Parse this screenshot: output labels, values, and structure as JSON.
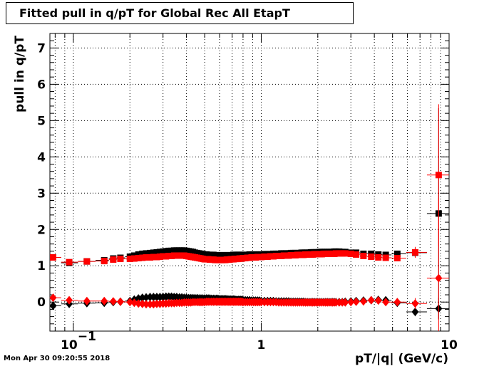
{
  "title": "Fitted pull in q/pT for Global Rec All EtapT",
  "timestamp": "Mon Apr 30 09:20:55 2018",
  "chart_data": {
    "type": "scatter",
    "title": "Fitted pull in q/pT for Global Rec All EtapT",
    "xlabel": "pT/|q| (GeV/c)",
    "ylabel": "pull in q/pT",
    "xscale": "log",
    "xlim": [
      0.075,
      10
    ],
    "ylim": [
      -0.8,
      7.4
    ],
    "grid": true,
    "x_tick_labels": [
      {
        "value": 0.1,
        "label": "10",
        "exponent": "−1"
      },
      {
        "value": 1,
        "label": "1"
      },
      {
        "value": 10,
        "label": "10"
      }
    ],
    "y_tick_labels": [
      0,
      1,
      2,
      3,
      4,
      5,
      6,
      7
    ],
    "x": [
      0.078,
      0.095,
      0.118,
      0.146,
      0.163,
      0.178,
      0.2,
      0.211,
      0.222,
      0.233,
      0.244,
      0.256,
      0.267,
      0.278,
      0.289,
      0.3,
      0.311,
      0.322,
      0.333,
      0.344,
      0.355,
      0.367,
      0.378,
      0.389,
      0.4,
      0.411,
      0.422,
      0.433,
      0.444,
      0.456,
      0.467,
      0.478,
      0.489,
      0.5,
      0.511,
      0.522,
      0.533,
      0.544,
      0.556,
      0.567,
      0.578,
      0.589,
      0.6,
      0.611,
      0.622,
      0.633,
      0.644,
      0.656,
      0.667,
      0.678,
      0.689,
      0.7,
      0.711,
      0.722,
      0.733,
      0.744,
      0.756,
      0.767,
      0.778,
      0.789,
      0.8,
      0.822,
      0.844,
      0.867,
      0.889,
      0.911,
      0.933,
      0.956,
      0.978,
      1.0,
      1.04,
      1.08,
      1.12,
      1.16,
      1.2,
      1.24,
      1.28,
      1.32,
      1.36,
      1.4,
      1.44,
      1.48,
      1.52,
      1.56,
      1.6,
      1.64,
      1.68,
      1.72,
      1.76,
      1.8,
      1.84,
      1.88,
      1.92,
      1.96,
      2.0,
      2.05,
      2.1,
      2.15,
      2.2,
      2.25,
      2.3,
      2.35,
      2.4,
      2.45,
      2.5,
      2.6,
      2.7,
      2.8,
      3.0,
      3.2,
      3.5,
      3.85,
      4.2,
      4.6,
      5.3,
      6.6,
      8.8
    ],
    "series": [
      {
        "color": "#000000",
        "marker": "square",
        "values": [
          1.23,
          1.08,
          1.12,
          1.15,
          1.2,
          1.22,
          1.25,
          1.28,
          1.31,
          1.33,
          1.34,
          1.35,
          1.36,
          1.37,
          1.38,
          1.39,
          1.4,
          1.41,
          1.41,
          1.42,
          1.42,
          1.42,
          1.42,
          1.42,
          1.41,
          1.4,
          1.39,
          1.38,
          1.36,
          1.35,
          1.34,
          1.33,
          1.32,
          1.31,
          1.31,
          1.3,
          1.3,
          1.3,
          1.3,
          1.29,
          1.29,
          1.29,
          1.29,
          1.29,
          1.29,
          1.29,
          1.29,
          1.29,
          1.29,
          1.29,
          1.29,
          1.29,
          1.3,
          1.3,
          1.3,
          1.3,
          1.3,
          1.3,
          1.3,
          1.3,
          1.3,
          1.3,
          1.3,
          1.31,
          1.31,
          1.31,
          1.31,
          1.31,
          1.31,
          1.31,
          1.32,
          1.32,
          1.32,
          1.33,
          1.33,
          1.33,
          1.34,
          1.34,
          1.34,
          1.34,
          1.35,
          1.35,
          1.35,
          1.35,
          1.35,
          1.36,
          1.36,
          1.36,
          1.36,
          1.36,
          1.37,
          1.37,
          1.37,
          1.37,
          1.37,
          1.38,
          1.38,
          1.38,
          1.38,
          1.38,
          1.38,
          1.38,
          1.38,
          1.39,
          1.39,
          1.39,
          1.38,
          1.38,
          1.36,
          1.36,
          1.33,
          1.33,
          1.31,
          1.3,
          1.33,
          1.36,
          2.44
        ],
        "errors": [
          0.05,
          0.04,
          0.04,
          0.04,
          0.03,
          0.03,
          0.03,
          0.03,
          0.03,
          0.03,
          0.03,
          0.03,
          0.03,
          0.03,
          0.03,
          0.03,
          0.03,
          0.03,
          0.03,
          0.03,
          0.03,
          0.03,
          0.03,
          0.03,
          0.03,
          0.03,
          0.03,
          0.03,
          0.03,
          0.03,
          0.03,
          0.03,
          0.03,
          0.03,
          0.03,
          0.03,
          0.03,
          0.03,
          0.03,
          0.03,
          0.03,
          0.03,
          0.03,
          0.03,
          0.03,
          0.03,
          0.03,
          0.03,
          0.03,
          0.03,
          0.03,
          0.03,
          0.03,
          0.03,
          0.03,
          0.03,
          0.03,
          0.03,
          0.03,
          0.03,
          0.03,
          0.03,
          0.03,
          0.03,
          0.03,
          0.03,
          0.03,
          0.03,
          0.03,
          0.03,
          0.03,
          0.03,
          0.03,
          0.03,
          0.03,
          0.03,
          0.03,
          0.03,
          0.03,
          0.03,
          0.03,
          0.03,
          0.03,
          0.03,
          0.03,
          0.03,
          0.03,
          0.03,
          0.03,
          0.03,
          0.03,
          0.03,
          0.03,
          0.03,
          0.03,
          0.03,
          0.03,
          0.03,
          0.03,
          0.03,
          0.03,
          0.03,
          0.03,
          0.03,
          0.03,
          0.03,
          0.03,
          0.03,
          0.04,
          0.04,
          0.04,
          0.05,
          0.05,
          0.06,
          0.07,
          0.12,
          2.9
        ]
      },
      {
        "color": "#ff0000",
        "marker": "square",
        "values": [
          1.23,
          1.1,
          1.12,
          1.13,
          1.17,
          1.19,
          1.19,
          1.2,
          1.21,
          1.22,
          1.23,
          1.23,
          1.24,
          1.24,
          1.25,
          1.26,
          1.26,
          1.27,
          1.27,
          1.28,
          1.28,
          1.28,
          1.28,
          1.28,
          1.27,
          1.26,
          1.25,
          1.24,
          1.23,
          1.22,
          1.21,
          1.2,
          1.19,
          1.18,
          1.18,
          1.18,
          1.17,
          1.17,
          1.17,
          1.16,
          1.16,
          1.16,
          1.16,
          1.16,
          1.16,
          1.16,
          1.16,
          1.17,
          1.17,
          1.17,
          1.18,
          1.18,
          1.18,
          1.19,
          1.19,
          1.19,
          1.19,
          1.2,
          1.2,
          1.2,
          1.21,
          1.21,
          1.22,
          1.22,
          1.23,
          1.23,
          1.23,
          1.24,
          1.24,
          1.24,
          1.25,
          1.25,
          1.26,
          1.26,
          1.27,
          1.27,
          1.27,
          1.28,
          1.28,
          1.28,
          1.29,
          1.29,
          1.29,
          1.3,
          1.3,
          1.3,
          1.3,
          1.31,
          1.31,
          1.31,
          1.31,
          1.31,
          1.32,
          1.32,
          1.32,
          1.32,
          1.32,
          1.33,
          1.33,
          1.33,
          1.33,
          1.33,
          1.33,
          1.33,
          1.34,
          1.34,
          1.34,
          1.34,
          1.33,
          1.31,
          1.27,
          1.25,
          1.23,
          1.22,
          1.21,
          1.37,
          3.5
        ],
        "errors": [
          0.05,
          0.04,
          0.04,
          0.04,
          0.03,
          0.03,
          0.03,
          0.03,
          0.03,
          0.03,
          0.03,
          0.03,
          0.03,
          0.03,
          0.03,
          0.03,
          0.03,
          0.03,
          0.03,
          0.03,
          0.03,
          0.03,
          0.03,
          0.03,
          0.03,
          0.03,
          0.03,
          0.03,
          0.03,
          0.03,
          0.03,
          0.03,
          0.03,
          0.03,
          0.03,
          0.03,
          0.03,
          0.03,
          0.03,
          0.03,
          0.03,
          0.03,
          0.03,
          0.03,
          0.03,
          0.03,
          0.03,
          0.03,
          0.03,
          0.03,
          0.03,
          0.03,
          0.03,
          0.03,
          0.03,
          0.03,
          0.03,
          0.03,
          0.03,
          0.03,
          0.03,
          0.03,
          0.03,
          0.03,
          0.03,
          0.03,
          0.03,
          0.03,
          0.03,
          0.03,
          0.03,
          0.03,
          0.03,
          0.03,
          0.03,
          0.03,
          0.03,
          0.03,
          0.03,
          0.03,
          0.03,
          0.03,
          0.03,
          0.03,
          0.03,
          0.03,
          0.03,
          0.03,
          0.03,
          0.03,
          0.03,
          0.03,
          0.03,
          0.03,
          0.03,
          0.03,
          0.03,
          0.03,
          0.03,
          0.03,
          0.03,
          0.03,
          0.03,
          0.03,
          0.03,
          0.03,
          0.03,
          0.03,
          0.04,
          0.04,
          0.04,
          0.05,
          0.05,
          0.06,
          0.07,
          0.15,
          1.95
        ]
      },
      {
        "color": "#000000",
        "marker": "diamond",
        "values": [
          -0.1,
          -0.05,
          -0.03,
          -0.02,
          0.0,
          0.01,
          0.03,
          0.07,
          0.1,
          0.12,
          0.13,
          0.14,
          0.14,
          0.14,
          0.14,
          0.14,
          0.15,
          0.15,
          0.15,
          0.14,
          0.14,
          0.13,
          0.13,
          0.12,
          0.12,
          0.11,
          0.11,
          0.11,
          0.11,
          0.11,
          0.1,
          0.1,
          0.1,
          0.1,
          0.1,
          0.1,
          0.1,
          0.09,
          0.09,
          0.09,
          0.09,
          0.09,
          0.08,
          0.08,
          0.08,
          0.08,
          0.08,
          0.08,
          0.07,
          0.07,
          0.07,
          0.07,
          0.07,
          0.07,
          0.06,
          0.06,
          0.06,
          0.06,
          0.06,
          0.06,
          0.05,
          0.05,
          0.05,
          0.05,
          0.04,
          0.04,
          0.04,
          0.04,
          0.04,
          0.03,
          0.03,
          0.03,
          0.03,
          0.03,
          0.02,
          0.02,
          0.02,
          0.02,
          0.02,
          0.02,
          0.01,
          0.01,
          0.01,
          0.01,
          0.01,
          0.01,
          0.01,
          0.0,
          0.0,
          0.0,
          0.0,
          0.0,
          0.0,
          0.0,
          0.0,
          0.0,
          0.0,
          0.0,
          0.0,
          0.0,
          0.0,
          0.0,
          0.0,
          0.0,
          0.0,
          0.0,
          0.0,
          0.01,
          0.02,
          0.03,
          0.04,
          0.05,
          0.06,
          0.05,
          -0.02,
          -0.27,
          -0.18
        ],
        "errors": [
          0.05,
          0.04,
          0.04,
          0.04,
          0.03,
          0.03,
          0.03,
          0.03,
          0.03,
          0.03,
          0.03,
          0.03,
          0.03,
          0.03,
          0.03,
          0.03,
          0.03,
          0.03,
          0.03,
          0.03,
          0.03,
          0.03,
          0.03,
          0.03,
          0.03,
          0.03,
          0.03,
          0.03,
          0.03,
          0.03,
          0.03,
          0.03,
          0.03,
          0.03,
          0.03,
          0.03,
          0.03,
          0.03,
          0.03,
          0.03,
          0.03,
          0.03,
          0.03,
          0.03,
          0.03,
          0.03,
          0.03,
          0.03,
          0.03,
          0.03,
          0.03,
          0.03,
          0.03,
          0.03,
          0.03,
          0.03,
          0.03,
          0.03,
          0.03,
          0.03,
          0.03,
          0.03,
          0.03,
          0.03,
          0.03,
          0.03,
          0.03,
          0.03,
          0.03,
          0.03,
          0.03,
          0.03,
          0.03,
          0.03,
          0.03,
          0.03,
          0.03,
          0.03,
          0.03,
          0.03,
          0.03,
          0.03,
          0.03,
          0.03,
          0.03,
          0.03,
          0.03,
          0.03,
          0.03,
          0.03,
          0.03,
          0.03,
          0.03,
          0.03,
          0.03,
          0.03,
          0.03,
          0.03,
          0.03,
          0.03,
          0.03,
          0.03,
          0.03,
          0.03,
          0.03,
          0.03,
          0.03,
          0.03,
          0.04,
          0.04,
          0.04,
          0.05,
          0.05,
          0.06,
          0.08,
          0.12,
          0.3
        ]
      },
      {
        "color": "#ff0000",
        "marker": "diamond",
        "values": [
          0.12,
          0.05,
          0.03,
          0.03,
          0.02,
          0.01,
          0.0,
          -0.02,
          -0.04,
          -0.05,
          -0.06,
          -0.06,
          -0.06,
          -0.05,
          -0.05,
          -0.04,
          -0.04,
          -0.03,
          -0.03,
          -0.03,
          -0.02,
          -0.02,
          -0.02,
          -0.01,
          -0.01,
          -0.01,
          -0.01,
          0.0,
          0.0,
          0.0,
          0.0,
          0.0,
          0.0,
          0.0,
          0.01,
          0.01,
          0.01,
          0.01,
          0.01,
          0.01,
          0.01,
          0.01,
          0.01,
          0.01,
          0.01,
          0.01,
          0.01,
          0.01,
          0.01,
          0.01,
          0.01,
          0.01,
          0.01,
          0.01,
          0.01,
          0.01,
          0.01,
          0.01,
          0.01,
          0.01,
          0.0,
          0.0,
          0.0,
          0.0,
          0.0,
          0.0,
          0.0,
          0.0,
          0.0,
          0.0,
          0.0,
          0.0,
          0.0,
          0.0,
          0.0,
          -0.01,
          -0.01,
          -0.01,
          -0.01,
          -0.01,
          -0.01,
          -0.01,
          -0.01,
          -0.01,
          -0.01,
          -0.01,
          -0.01,
          -0.01,
          -0.01,
          -0.01,
          -0.01,
          -0.01,
          -0.01,
          -0.01,
          -0.01,
          -0.01,
          -0.01,
          -0.01,
          -0.01,
          -0.01,
          -0.01,
          -0.01,
          -0.01,
          -0.01,
          -0.01,
          -0.01,
          -0.01,
          -0.01,
          0.0,
          0.01,
          0.02,
          0.05,
          0.04,
          0.0,
          0.0,
          -0.04,
          0.66
        ],
        "errors": [
          0.05,
          0.04,
          0.04,
          0.04,
          0.03,
          0.03,
          0.03,
          0.03,
          0.03,
          0.03,
          0.03,
          0.03,
          0.03,
          0.03,
          0.03,
          0.03,
          0.03,
          0.03,
          0.03,
          0.03,
          0.03,
          0.03,
          0.03,
          0.03,
          0.03,
          0.03,
          0.03,
          0.03,
          0.03,
          0.03,
          0.03,
          0.03,
          0.03,
          0.03,
          0.03,
          0.03,
          0.03,
          0.03,
          0.03,
          0.03,
          0.03,
          0.03,
          0.03,
          0.03,
          0.03,
          0.03,
          0.03,
          0.03,
          0.03,
          0.03,
          0.03,
          0.03,
          0.03,
          0.03,
          0.03,
          0.03,
          0.03,
          0.03,
          0.03,
          0.03,
          0.03,
          0.03,
          0.03,
          0.03,
          0.03,
          0.03,
          0.03,
          0.03,
          0.03,
          0.03,
          0.03,
          0.03,
          0.03,
          0.03,
          0.03,
          0.03,
          0.03,
          0.03,
          0.03,
          0.03,
          0.03,
          0.03,
          0.03,
          0.03,
          0.03,
          0.03,
          0.03,
          0.03,
          0.03,
          0.03,
          0.03,
          0.03,
          0.03,
          0.03,
          0.03,
          0.03,
          0.03,
          0.03,
          0.03,
          0.03,
          0.03,
          0.03,
          0.03,
          0.03,
          0.03,
          0.03,
          0.03,
          0.03,
          0.04,
          0.04,
          0.04,
          0.05,
          0.05,
          0.06,
          0.08,
          0.15,
          2.2
        ]
      }
    ]
  }
}
